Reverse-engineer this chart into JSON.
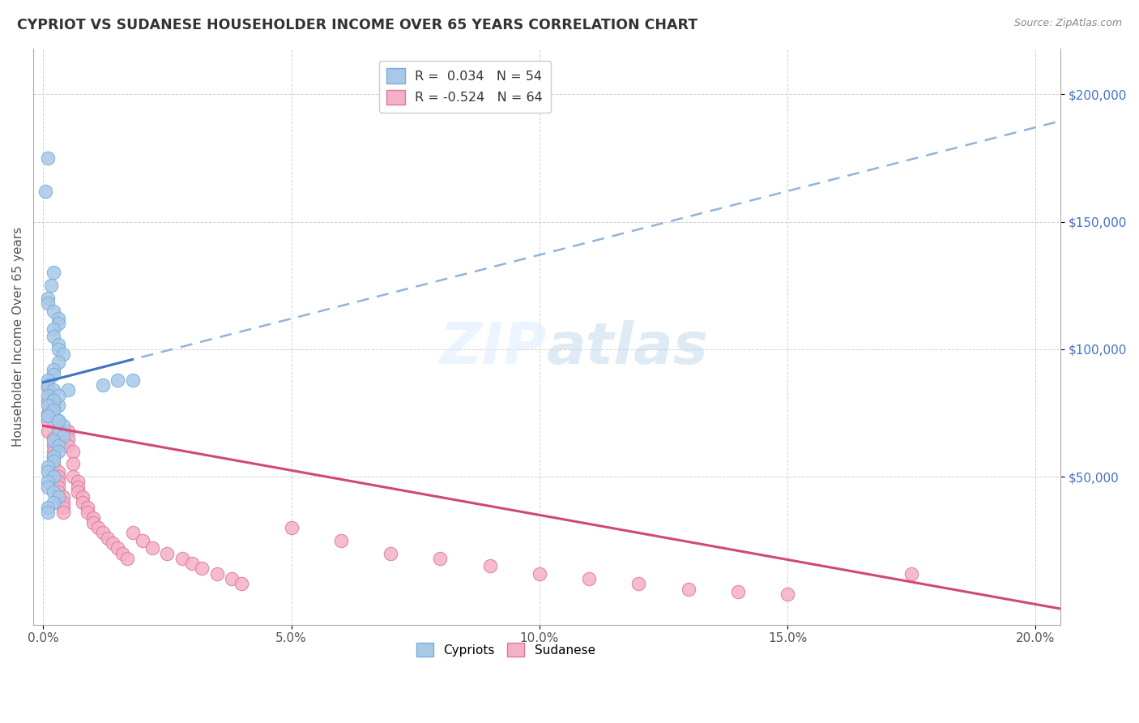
{
  "title": "CYPRIOT VS SUDANESE HOUSEHOLDER INCOME OVER 65 YEARS CORRELATION CHART",
  "source": "Source: ZipAtlas.com",
  "ylabel": "Householder Income Over 65 years",
  "xlabel_ticks": [
    "0.0%",
    "5.0%",
    "10.0%",
    "15.0%",
    "20.0%"
  ],
  "xlabel_vals": [
    0.0,
    0.05,
    0.1,
    0.15,
    0.2
  ],
  "ylabel_ticks": [
    "$200,000",
    "$150,000",
    "$100,000",
    "$50,000"
  ],
  "ylabel_vals": [
    200000,
    150000,
    100000,
    50000
  ],
  "cypriot_R": 0.034,
  "cypriot_N": 54,
  "sudanese_R": -0.524,
  "sudanese_N": 64,
  "cypriot_color": "#a8c8e8",
  "cypriot_edge": "#7aaed6",
  "sudanese_color": "#f4b0c8",
  "sudanese_edge": "#e07898",
  "trend_cypriot_solid_color": "#4472C4",
  "trend_cypriot_dash_color": "#92b4d8",
  "trend_sudanese_color": "#d04878",
  "background_color": "#ffffff",
  "xlim": [
    -0.002,
    0.205
  ],
  "ylim": [
    -8000,
    218000
  ],
  "cypriot_x": [
    0.001,
    0.0005,
    0.002,
    0.0015,
    0.001,
    0.001,
    0.002,
    0.003,
    0.003,
    0.002,
    0.002,
    0.003,
    0.003,
    0.004,
    0.003,
    0.002,
    0.002,
    0.001,
    0.001,
    0.002,
    0.001,
    0.002,
    0.003,
    0.002,
    0.001,
    0.003,
    0.004,
    0.003,
    0.004,
    0.002,
    0.003,
    0.003,
    0.002,
    0.002,
    0.001,
    0.001,
    0.002,
    0.001,
    0.001,
    0.002,
    0.003,
    0.002,
    0.001,
    0.001,
    0.015,
    0.018,
    0.012,
    0.005,
    0.003,
    0.002,
    0.001,
    0.002,
    0.001,
    0.003
  ],
  "cypriot_y": [
    175000,
    162000,
    130000,
    125000,
    120000,
    118000,
    115000,
    112000,
    110000,
    108000,
    105000,
    102000,
    100000,
    98000,
    95000,
    92000,
    90000,
    88000,
    86000,
    84000,
    82000,
    80000,
    78000,
    76000,
    74000,
    72000,
    70000,
    68000,
    66000,
    64000,
    62000,
    60000,
    58000,
    56000,
    54000,
    52000,
    50000,
    48000,
    46000,
    44000,
    42000,
    40000,
    38000,
    36000,
    88000,
    88000,
    86000,
    84000,
    82000,
    80000,
    78000,
    76000,
    74000,
    72000
  ],
  "sudanese_x": [
    0.001,
    0.001,
    0.001,
    0.001,
    0.002,
    0.002,
    0.002,
    0.002,
    0.002,
    0.003,
    0.003,
    0.003,
    0.003,
    0.003,
    0.004,
    0.004,
    0.004,
    0.004,
    0.005,
    0.005,
    0.005,
    0.006,
    0.006,
    0.006,
    0.007,
    0.007,
    0.007,
    0.008,
    0.008,
    0.009,
    0.009,
    0.01,
    0.01,
    0.011,
    0.012,
    0.013,
    0.014,
    0.015,
    0.016,
    0.017,
    0.018,
    0.02,
    0.022,
    0.025,
    0.028,
    0.03,
    0.032,
    0.035,
    0.038,
    0.04,
    0.05,
    0.06,
    0.07,
    0.08,
    0.09,
    0.1,
    0.11,
    0.12,
    0.13,
    0.14,
    0.15,
    0.175,
    0.001,
    0.002
  ],
  "sudanese_y": [
    80000,
    75000,
    72000,
    68000,
    65000,
    62000,
    60000,
    58000,
    55000,
    52000,
    50000,
    48000,
    46000,
    44000,
    42000,
    40000,
    38000,
    36000,
    68000,
    65000,
    62000,
    60000,
    55000,
    50000,
    48000,
    46000,
    44000,
    42000,
    40000,
    38000,
    36000,
    34000,
    32000,
    30000,
    28000,
    26000,
    24000,
    22000,
    20000,
    18000,
    28000,
    25000,
    22000,
    20000,
    18000,
    16000,
    14000,
    12000,
    10000,
    8000,
    30000,
    25000,
    20000,
    18000,
    15000,
    12000,
    10000,
    8000,
    6000,
    5000,
    4000,
    12000,
    85000,
    78000
  ]
}
